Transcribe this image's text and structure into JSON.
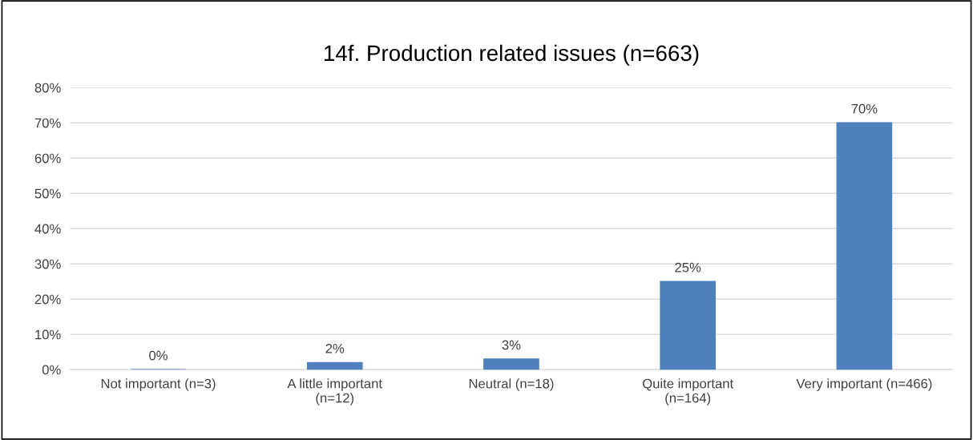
{
  "chart_data": {
    "type": "bar",
    "title": "14f. Production related issues (n=663)",
    "categories": [
      "Not important (n=3)",
      "A little important\n(n=12)",
      "Neutral (n=18)",
      "Quite important\n(n=164)",
      "Very important (n=466)"
    ],
    "values": [
      0,
      2,
      3,
      25,
      70
    ],
    "color": "#4f81bd",
    "ylim": [
      0,
      80
    ],
    "yticks": [
      {
        "value": 0,
        "label": "0%"
      },
      {
        "value": 10,
        "label": "10%"
      },
      {
        "value": 20,
        "label": "20%"
      },
      {
        "value": 30,
        "label": "30%"
      },
      {
        "value": 40,
        "label": "40%"
      },
      {
        "value": 50,
        "label": "50%"
      },
      {
        "value": 60,
        "label": "60%"
      },
      {
        "value": 70,
        "label": "70%"
      },
      {
        "value": 80,
        "label": "80%"
      }
    ],
    "value_labels": [
      "0%",
      "2%",
      "3%",
      "25%",
      "70%"
    ],
    "grid": "y"
  }
}
